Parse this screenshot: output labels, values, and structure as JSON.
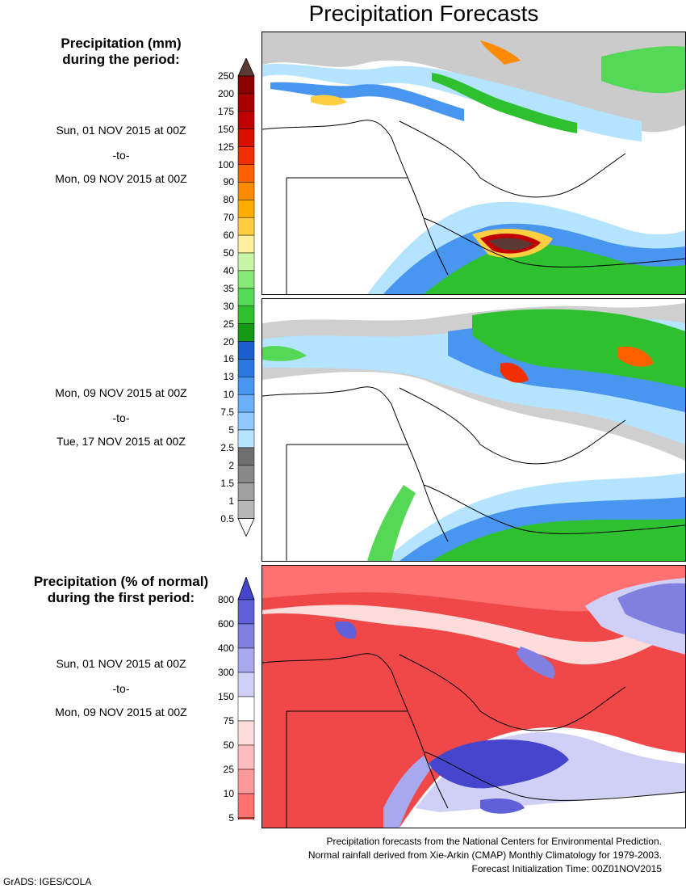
{
  "title": "Precipitation Forecasts",
  "section_total": {
    "heading": "Precipitation (mm)\nduring the period:",
    "period1": {
      "start": "Sun, 01 NOV 2015 at 00Z",
      "sep": "-to-",
      "end": "Mon, 09 NOV 2015 at 00Z"
    },
    "period2": {
      "start": "Mon, 09 NOV 2015 at 00Z",
      "sep": "-to-",
      "end": "Tue, 17 NOV 2015 at 00Z"
    }
  },
  "section_percent": {
    "heading": "Precipitation (% of normal)\nduring the first period:",
    "period": {
      "start": "Sun, 01 NOV 2015 at 00Z",
      "sep": "-to-",
      "end": "Mon, 09 NOV 2015 at 00Z"
    }
  },
  "mm_colorbar": {
    "labels": [
      "250",
      "200",
      "175",
      "150",
      "125",
      "100",
      "90",
      "80",
      "70",
      "60",
      "50",
      "40",
      "35",
      "30",
      "25",
      "20",
      "16",
      "13",
      "10",
      "7.5",
      "5",
      "2.5",
      "2",
      "1.5",
      "1",
      "0.5"
    ],
    "colors": [
      "#8b0000",
      "#a80000",
      "#c00000",
      "#d91000",
      "#f03000",
      "#ff6000",
      "#ff8c00",
      "#ffad00",
      "#ffcf40",
      "#fff0a0",
      "#c8f5a8",
      "#88e878",
      "#55d855",
      "#2ec02e",
      "#139913",
      "#1a5fd0",
      "#2a78e0",
      "#4896f0",
      "#6aaff8",
      "#8ec8ff",
      "#b4e4ff",
      "#707070",
      "#888888",
      "#a0a0a0",
      "#b8b8b8"
    ],
    "top_color": "#5a3a34"
  },
  "pct_colorbar": {
    "labels": [
      "800",
      "600",
      "400",
      "300",
      "150",
      "75",
      "50",
      "25",
      "10",
      "5"
    ],
    "colors": [
      "#6060d8",
      "#8080e0",
      "#a8a8ec",
      "#d0d0f6",
      "#ffffff",
      "#ffdcdc",
      "#ffbcbc",
      "#ff9a9a",
      "#ff7070"
    ],
    "top_color": "#4646cc",
    "bottom_color": "#f04848"
  },
  "footer": {
    "line1": "Precipitation forecasts from the National Centers for Environmental Prediction.",
    "line2": "Normal rainfall derived from Xie-Arkin (CMAP) Monthly Climatology for 1979-2003.",
    "line3": "Forecast Initialization Time: 00Z01NOV2015"
  },
  "credit": "GrADS: IGES/COLA"
}
